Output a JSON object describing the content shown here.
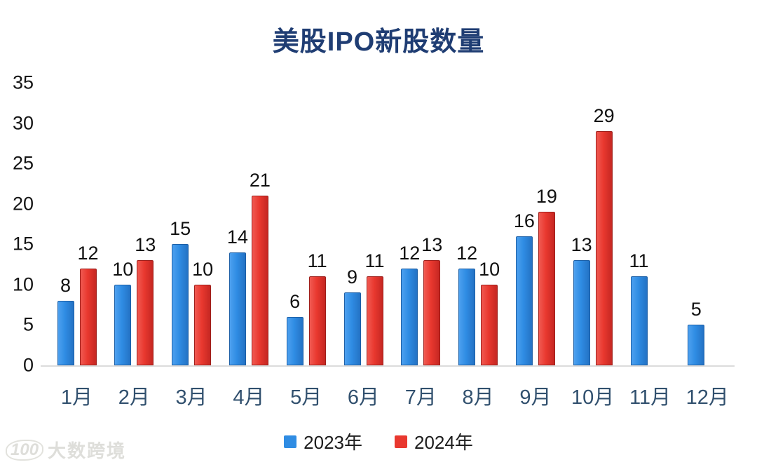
{
  "chart_data": {
    "type": "bar",
    "title": "美股IPO新股数量",
    "categories": [
      "1月",
      "2月",
      "3月",
      "4月",
      "5月",
      "6月",
      "7月",
      "8月",
      "9月",
      "10月",
      "11月",
      "12月"
    ],
    "series": [
      {
        "name": "2023年",
        "color": "#2f8ce3",
        "values": [
          8,
          10,
          15,
          14,
          6,
          9,
          12,
          12,
          16,
          13,
          11,
          5
        ]
      },
      {
        "name": "2024年",
        "color": "#e9382f",
        "values": [
          12,
          13,
          10,
          21,
          11,
          11,
          13,
          10,
          19,
          29,
          null,
          null
        ]
      }
    ],
    "xlabel": "",
    "ylabel": "",
    "ylim": [
      0,
      35
    ],
    "yticks": [
      0,
      5,
      10,
      15,
      20,
      25,
      30,
      35
    ],
    "grid": false,
    "data_labels": true,
    "legend_position": "bottom"
  },
  "watermark": {
    "logo": "100",
    "text": "大数跨境"
  }
}
